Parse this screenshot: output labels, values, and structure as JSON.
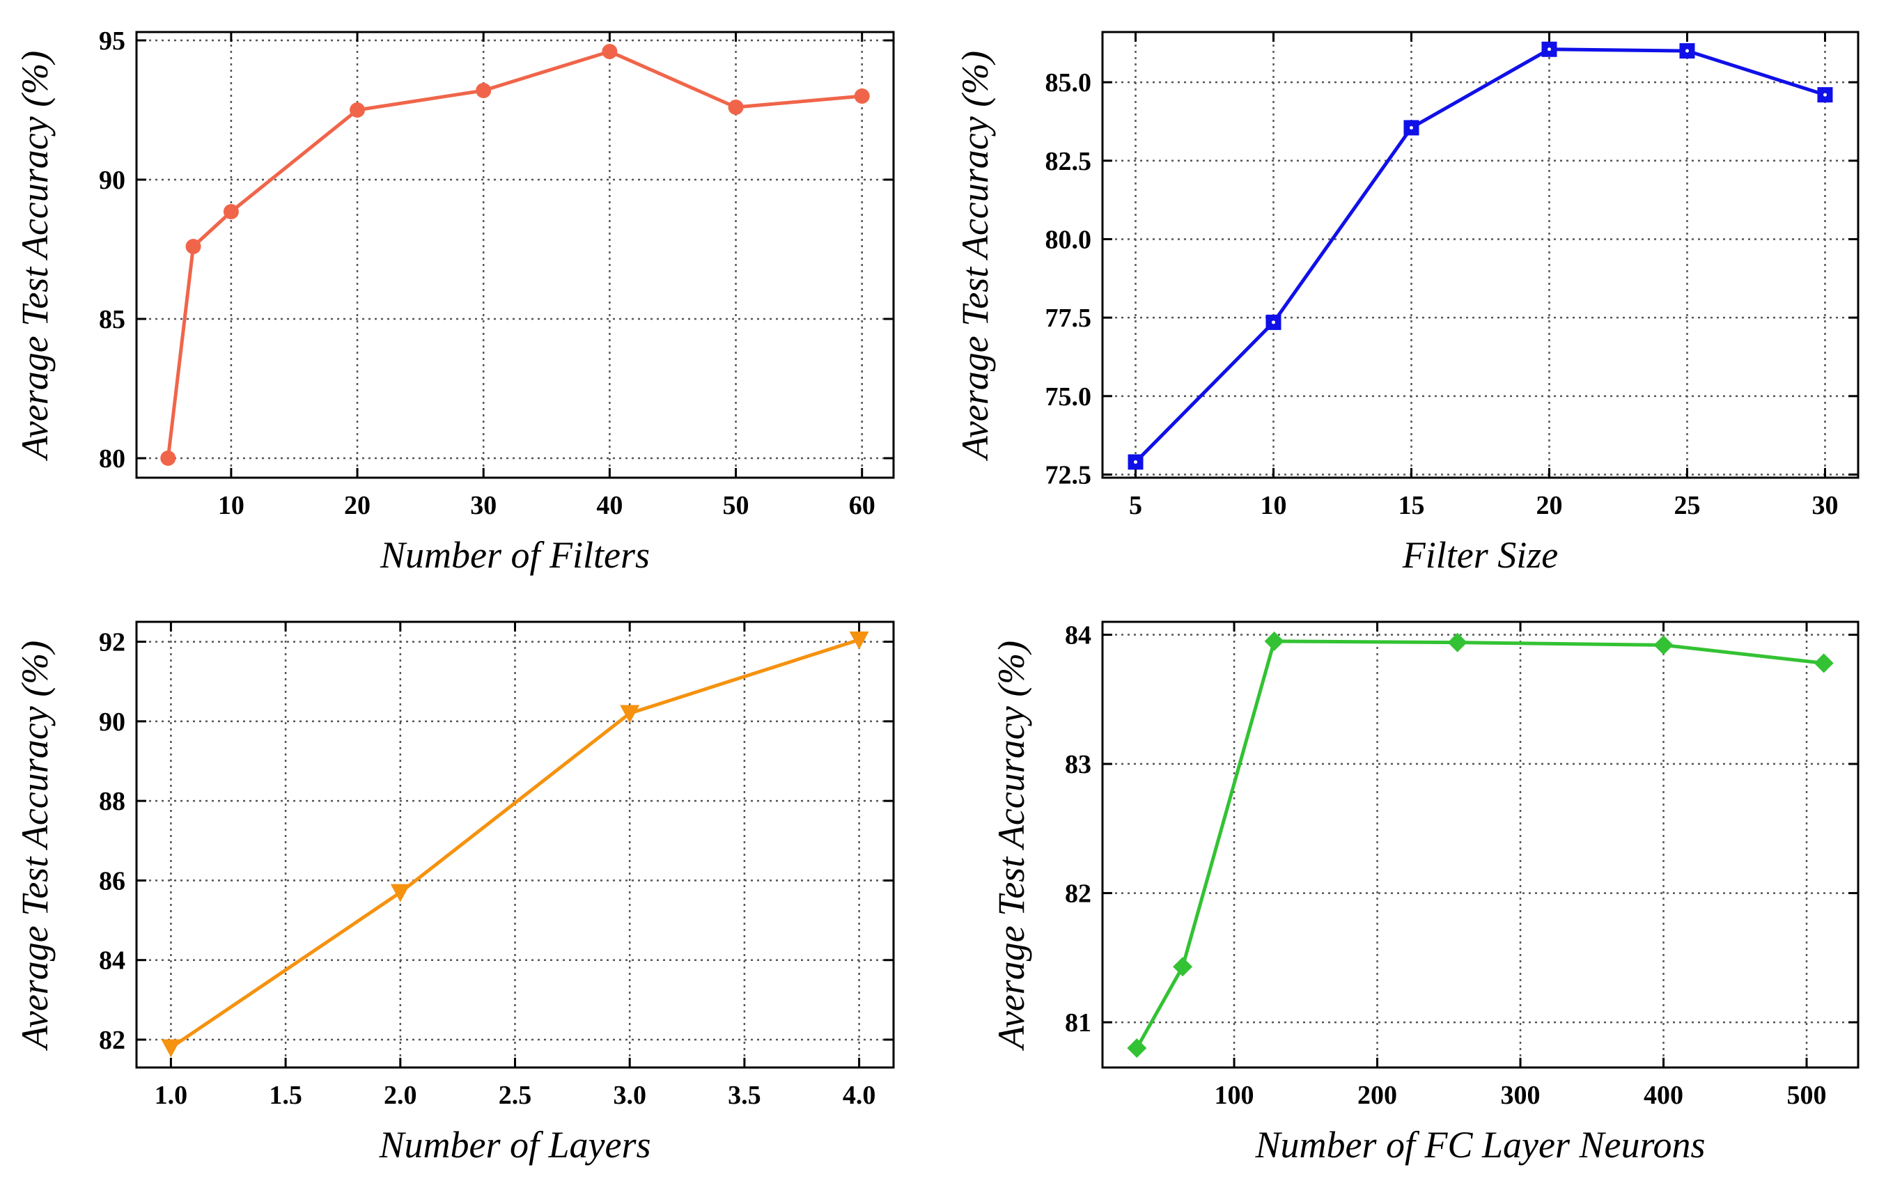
{
  "chart_data": [
    {
      "type": "line",
      "title": "",
      "xlabel": "Number of Filters",
      "ylabel": "Average Test Accuracy (%)",
      "x": [
        5,
        7,
        10,
        20,
        30,
        40,
        50,
        60
      ],
      "values": [
        80.0,
        87.6,
        88.85,
        92.5,
        93.2,
        94.6,
        92.6,
        93.0
      ],
      "xlim": [
        2.5,
        62.5
      ],
      "ylim": [
        79.3,
        95.3
      ],
      "xticks": [
        10,
        20,
        30,
        40,
        50,
        60
      ],
      "xtick_labels": [
        "10",
        "20",
        "30",
        "40",
        "50",
        "60"
      ],
      "yticks": [
        80,
        85,
        90,
        95
      ],
      "ytick_labels": [
        "80",
        "85",
        "90",
        "95"
      ],
      "color": "#f0654a",
      "marker": "circle",
      "grid": true
    },
    {
      "type": "line",
      "title": "",
      "xlabel": "Filter Size",
      "ylabel": "Average Test Accuracy (%)",
      "x": [
        5,
        10,
        15,
        20,
        25,
        30
      ],
      "values": [
        72.9,
        77.35,
        83.55,
        86.05,
        86.0,
        84.6
      ],
      "xlim": [
        3.8,
        31.2
      ],
      "ylim": [
        72.4,
        86.6
      ],
      "xticks": [
        5,
        10,
        15,
        20,
        25,
        30
      ],
      "xtick_labels": [
        "5",
        "10",
        "15",
        "20",
        "25",
        "30"
      ],
      "yticks": [
        72.5,
        75.0,
        77.5,
        80.0,
        82.5,
        85.0
      ],
      "ytick_labels": [
        "72.5",
        "75.0",
        "77.5",
        "80.0",
        "82.5",
        "85.0"
      ],
      "color": "#1010e8",
      "marker": "square",
      "grid": true
    },
    {
      "type": "line",
      "title": "",
      "xlabel": "Number of Layers",
      "ylabel": "Average Test Accuracy (%)",
      "x": [
        1.0,
        2.0,
        3.0,
        4.0
      ],
      "values": [
        81.8,
        85.7,
        90.2,
        92.05
      ],
      "xlim": [
        0.85,
        4.15
      ],
      "ylim": [
        81.3,
        92.5
      ],
      "xticks": [
        1.0,
        1.5,
        2.0,
        2.5,
        3.0,
        3.5,
        4.0
      ],
      "xtick_labels": [
        "1.0",
        "1.5",
        "2.0",
        "2.5",
        "3.0",
        "3.5",
        "4.0"
      ],
      "yticks": [
        82,
        84,
        86,
        88,
        90,
        92
      ],
      "ytick_labels": [
        "82",
        "84",
        "86",
        "88",
        "90",
        "92"
      ],
      "color": "#f5920f",
      "marker": "triangle-down",
      "grid": true
    },
    {
      "type": "line",
      "title": "",
      "xlabel": "Number of FC Layer Neurons",
      "ylabel": "Average Test Accuracy (%)",
      "x": [
        32,
        64,
        128,
        256,
        400,
        512
      ],
      "values": [
        80.8,
        81.43,
        83.95,
        83.94,
        83.92,
        83.78
      ],
      "xlim": [
        8,
        536
      ],
      "ylim": [
        80.65,
        84.1
      ],
      "xticks": [
        100,
        200,
        300,
        400,
        500
      ],
      "xtick_labels": [
        "100",
        "200",
        "300",
        "400",
        "500"
      ],
      "yticks": [
        81,
        82,
        83,
        84
      ],
      "ytick_labels": [
        "81",
        "82",
        "83",
        "84"
      ],
      "color": "#33c233",
      "marker": "diamond",
      "grid": true
    }
  ]
}
